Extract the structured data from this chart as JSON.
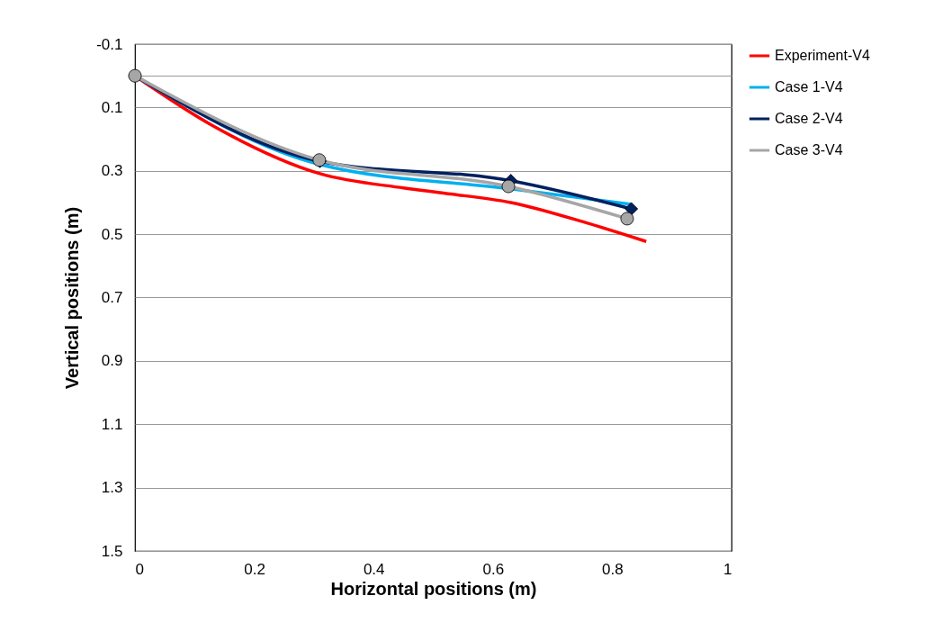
{
  "chart_data": {
    "type": "line",
    "xlabel": "Horizontal positions (m)",
    "ylabel": "Vertical positions (m)",
    "xlim": [
      0,
      1
    ],
    "xticks": [
      0,
      0.2,
      0.4,
      0.6,
      0.8,
      1
    ],
    "ylim": [
      1.5,
      -0.1
    ],
    "yticks": [
      -0.1,
      {
        "value": 0,
        "label": null
      },
      0.1,
      0.3,
      0.5,
      0.7,
      0.9,
      1.1,
      1.3,
      1.5
    ],
    "grid": "y",
    "legend": "right",
    "series": [
      {
        "name": "Experiment-V4",
        "color": "#ff0000",
        "marker": "none",
        "x": [
          0,
          0.13,
          0.31,
          0.45,
          0.52,
          0.63,
          0.76,
          0.857
        ],
        "values": [
          0,
          0.157,
          0.309,
          0.354,
          0.371,
          0.4,
          0.466,
          0.523
        ]
      },
      {
        "name": "Case 1-V4",
        "color": "#00b0f0",
        "marker": "none",
        "x": [
          0,
          0.31,
          0.63,
          0.832
        ],
        "values": [
          0,
          0.28,
          0.357,
          0.406
        ]
      },
      {
        "name": "Case 2-V4",
        "color": "#002060",
        "marker": "diamond",
        "x": [
          0,
          0.31,
          0.63,
          0.832
        ],
        "values": [
          0,
          0.27,
          0.331,
          0.42
        ]
      },
      {
        "name": "Case 3-V4",
        "color": "#a6a6a6",
        "marker": "circle",
        "x": [
          0,
          0.309,
          0.626,
          0.825
        ],
        "values": [
          0,
          0.266,
          0.349,
          0.451
        ]
      }
    ]
  }
}
